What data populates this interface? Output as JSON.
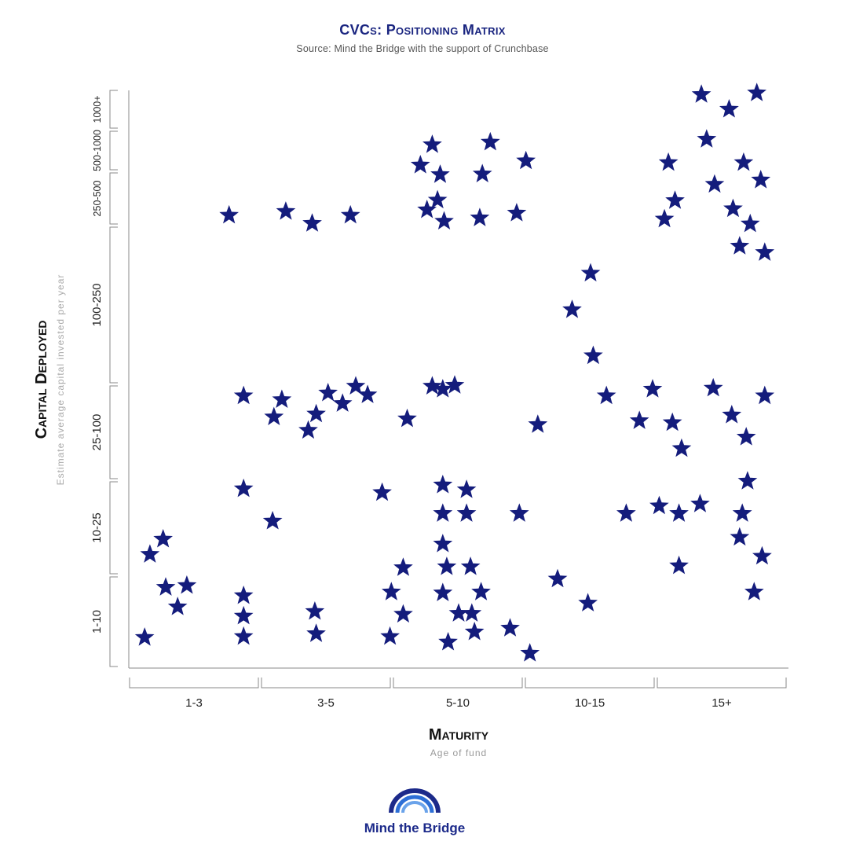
{
  "header": {
    "title": "CVCs: Positioning Matrix",
    "subtitle": "Source: Mind the Bridge with the support of Crunchbase"
  },
  "logo": {
    "text": "Mind the Bridge",
    "color": "#1c2a8a",
    "accent": "#2d6fd6"
  },
  "colors": {
    "marker": "#141c7c",
    "axis": "#888888"
  },
  "chart_data": {
    "type": "scatter",
    "marker": "star",
    "title": "CVCs: Positioning Matrix",
    "subtitle": "Source: Mind the Bridge with the support of Crunchbase",
    "xlabel": "Maturity",
    "xsublabel": "Age of fund",
    "ylabel": "Capital Deployed",
    "ysublabel": "Estimate average capital invested per year",
    "x_categories": [
      "1-3",
      "3-5",
      "5-10",
      "10-15",
      "15+"
    ],
    "y_categories": [
      "1-10",
      "10-25",
      "25-100",
      "100-250",
      "250-500",
      "500-1000",
      "1000+"
    ],
    "note": "Points are positions within the category bands (x and y in band units: 0 = start of lowest band, 5 = end of x axis, 7 = end of y axis).",
    "points": [
      [
        0.12,
        0.33
      ],
      [
        0.16,
        1.22
      ],
      [
        0.26,
        1.38
      ],
      [
        0.28,
        0.87
      ],
      [
        0.37,
        0.66
      ],
      [
        0.44,
        0.89
      ],
      [
        0.76,
        4.19
      ],
      [
        0.87,
        0.34
      ],
      [
        0.87,
        0.56
      ],
      [
        0.87,
        0.78
      ],
      [
        0.87,
        1.91
      ],
      [
        0.87,
        2.88
      ],
      [
        1.09,
        1.57
      ],
      [
        1.1,
        2.66
      ],
      [
        1.16,
        2.84
      ],
      [
        1.19,
        4.26
      ],
      [
        1.36,
        2.52
      ],
      [
        1.39,
        4.04
      ],
      [
        1.41,
        0.61
      ],
      [
        1.42,
        0.37
      ],
      [
        1.42,
        2.69
      ],
      [
        1.51,
        2.91
      ],
      [
        1.62,
        2.8
      ],
      [
        1.68,
        4.19
      ],
      [
        1.72,
        2.98
      ],
      [
        1.81,
        2.89
      ],
      [
        1.92,
        1.87
      ],
      [
        1.98,
        0.34
      ],
      [
        1.99,
        0.82
      ],
      [
        2.08,
        1.08
      ],
      [
        2.08,
        0.58
      ],
      [
        2.11,
        2.64
      ],
      [
        2.21,
        5.15
      ],
      [
        2.26,
        4.29
      ],
      [
        2.3,
        2.98
      ],
      [
        2.3,
        5.64
      ],
      [
        2.34,
        4.47
      ],
      [
        2.36,
        4.94
      ],
      [
        2.38,
        2.95
      ],
      [
        2.38,
        1.95
      ],
      [
        2.39,
        4.08
      ],
      [
        2.38,
        0.81
      ],
      [
        2.38,
        1.65
      ],
      [
        2.38,
        1.33
      ],
      [
        2.41,
        1.09
      ],
      [
        2.42,
        0.28
      ],
      [
        2.47,
        2.99
      ],
      [
        2.5,
        0.59
      ],
      [
        2.56,
        1.9
      ],
      [
        2.56,
        1.65
      ],
      [
        2.59,
        1.09
      ],
      [
        2.6,
        0.59
      ],
      [
        2.62,
        0.39
      ],
      [
        2.66,
        4.14
      ],
      [
        2.67,
        0.82
      ],
      [
        2.68,
        4.95
      ],
      [
        2.74,
        5.7
      ],
      [
        2.89,
        0.43
      ],
      [
        2.94,
        4.23
      ],
      [
        2.96,
        1.65
      ],
      [
        3.01,
        5.25
      ],
      [
        3.04,
        0.16
      ],
      [
        3.1,
        2.58
      ],
      [
        3.25,
        0.96
      ],
      [
        3.36,
        3.47
      ],
      [
        3.48,
        0.7
      ],
      [
        3.5,
        3.7
      ],
      [
        3.52,
        3.18
      ],
      [
        3.62,
        2.88
      ],
      [
        3.77,
        1.65
      ],
      [
        3.87,
        2.62
      ],
      [
        3.97,
        2.95
      ],
      [
        4.02,
        1.73
      ],
      [
        4.06,
        4.12
      ],
      [
        4.09,
        5.21
      ],
      [
        4.12,
        2.6
      ],
      [
        4.14,
        4.46
      ],
      [
        4.17,
        1.1
      ],
      [
        4.17,
        1.65
      ],
      [
        4.19,
        2.33
      ],
      [
        4.33,
        1.75
      ],
      [
        4.34,
        6.86
      ],
      [
        4.38,
        5.77
      ],
      [
        4.44,
        4.76
      ],
      [
        4.43,
        2.96
      ],
      [
        4.55,
        6.5
      ],
      [
        4.57,
        2.68
      ],
      [
        4.58,
        4.31
      ],
      [
        4.63,
        3.87
      ],
      [
        4.63,
        1.4
      ],
      [
        4.65,
        1.65
      ],
      [
        4.66,
        5.21
      ],
      [
        4.68,
        2.45
      ],
      [
        4.69,
        1.99
      ],
      [
        4.71,
        4.03
      ],
      [
        4.74,
        0.82
      ],
      [
        4.76,
        6.9
      ],
      [
        4.79,
        4.84
      ],
      [
        4.8,
        1.2
      ],
      [
        4.82,
        2.88
      ],
      [
        4.82,
        3.83
      ]
    ]
  }
}
